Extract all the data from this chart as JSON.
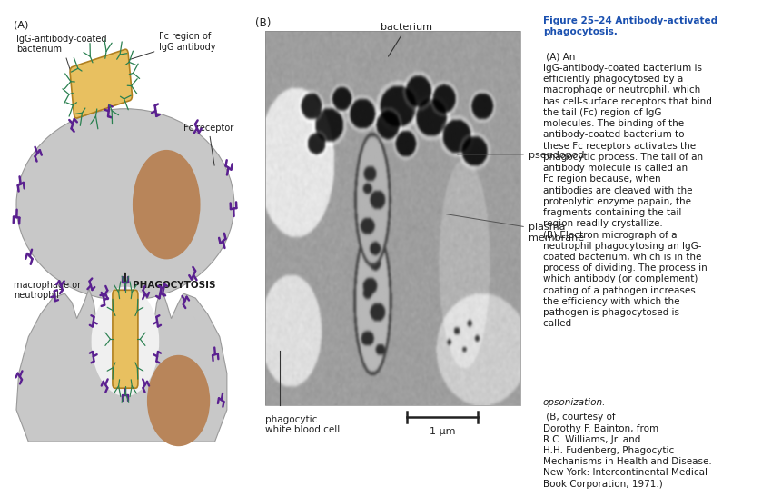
{
  "panel_a_label": "(A)",
  "panel_b_label": "(B)",
  "label_igg_bacterium": "IgG-antibody-coated\nbacterium",
  "label_fc_region": "Fc region of\nIgG antibody",
  "label_fc_receptor": "Fc receptor",
  "label_macrophage": "macrophage or\nneutrophil",
  "label_phagocytosis": "PHAGOCYTOSIS",
  "label_bacterium_b": "bacterium",
  "label_pseudopod": "pseudopod",
  "label_plasma_membrane": "plasma\nmembrane",
  "label_phagocytic": "phagocytic\nwhite blood cell",
  "label_scale": "1 μm",
  "bg_color": "#ffffff",
  "cell_color": "#c8c8c8",
  "cell_edge_color": "#999999",
  "nucleus_color": "#b8855a",
  "bacterium_color_top": "#e8c060",
  "bacterium_color_bot": "#d4aa40",
  "bacterium_edge": "#b08020",
  "antibody_color": "#2a8050",
  "receptor_color": "#5a2090",
  "text_color": "#1a1a1a",
  "caption_color_bold": "#1a50b0",
  "arrow_color": "#333333",
  "caption_title": "Figure 25–24 Antibody-activated\nphagocytosis.",
  "caption_body1": " (A) An\nIgG-antibody-coated bacterium is\nefficiently phagocytosed by a\nmacrophage or neutrophil, which\nhas cell-surface receptors that bind\nthe tail (Fc) region of IgG\nmolecules. The binding of the\nantibody-coated bacterium to\nthese Fc receptors activates the\nphagocytic process. The tail of an\nantibody molecule is called an\nFc region because, when\nantibodies are cleaved with the\nproteolytic enzyme papain, the\nfragments containing the tail\nregion readily crystallize.\n(B) Electron micrograph of a\nneutrophil phagocytosing an IgG-\ncoated bacterium, which is in the\nprocess of dividing. The process in\nwhich antibody (or complement)\ncoating of a pathogen increases\nthe efficiency with which the\npathogen is phagocytosed is\ncalled ",
  "caption_italic": "opsonization.",
  "caption_body2": " (B, courtesy of\nDorothy F. Bainton, from\nR.C. Williams, Jr. and\nH.H. Fudenberg, Phagocytic\nMechanisms in Health and Disease.\nNew York: Intercontinental Medical\nBook Corporation, 1971.)"
}
